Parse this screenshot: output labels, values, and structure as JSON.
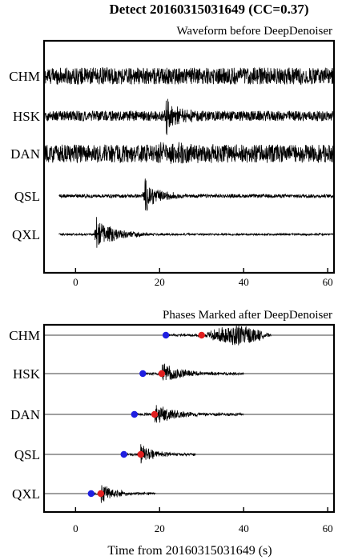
{
  "title": "Detect 20160315031649 (CC=0.37)",
  "colors": {
    "p_pick": "#1f1fe0",
    "s_pick": "#e01f1f",
    "trace": "#000000"
  },
  "chart_data": [
    {
      "type": "line",
      "subtitle": "Waveform before DeepDenoiser",
      "xlim": [
        -7.5,
        61.5
      ],
      "xticks": [
        0,
        20,
        40,
        60
      ],
      "xlabel": "",
      "series": [
        {
          "name": "CHM",
          "start": -7.5,
          "end": 61.5,
          "noise_amp": 0.75,
          "event_time": null,
          "event_amp": 0,
          "event_dur": 0
        },
        {
          "name": "HSK",
          "start": -7.5,
          "end": 61.5,
          "noise_amp": 0.45,
          "event_time": 21.5,
          "event_amp": 1.3,
          "event_dur": 3
        },
        {
          "name": "DAN",
          "start": -7.5,
          "end": 61.5,
          "noise_amp": 0.8,
          "event_time": 20,
          "event_amp": 0.4,
          "event_dur": 10
        },
        {
          "name": "QSL",
          "start": -4,
          "end": 61.5,
          "noise_amp": 0.15,
          "event_time": 16.5,
          "event_amp": 1.1,
          "event_dur": 4
        },
        {
          "name": "QXL",
          "start": -4,
          "end": 61.5,
          "noise_amp": 0.08,
          "event_time": 5,
          "event_amp": 1.2,
          "event_dur": 5
        }
      ]
    },
    {
      "type": "line",
      "subtitle": "Phases Marked after DeepDenoiser",
      "xlim": [
        -7.5,
        61.5
      ],
      "xticks": [
        0,
        20,
        40,
        60
      ],
      "xlabel": "Time from 20160315031649 (s)",
      "series": [
        {
          "name": "CHM",
          "start": -7.5,
          "end": 61.5,
          "signal_end": 46.5,
          "p_pick": 21.5,
          "s_pick": 30,
          "amp": 1.0
        },
        {
          "name": "HSK",
          "start": -7.5,
          "end": 61.5,
          "signal_end": 40,
          "p_pick": 16,
          "s_pick": 20.5,
          "amp": 1.1
        },
        {
          "name": "DAN",
          "start": -7.5,
          "end": 61.5,
          "signal_end": 40,
          "p_pick": 14,
          "s_pick": 18.8,
          "amp": 1.0
        },
        {
          "name": "QSL",
          "start": -7.5,
          "end": 61.5,
          "signal_end": 28.5,
          "p_pick": 11.5,
          "s_pick": 15.5,
          "amp": 1.0
        },
        {
          "name": "QXL",
          "start": -7.5,
          "end": 61.5,
          "signal_end": 19,
          "p_pick": 3.7,
          "s_pick": 6,
          "amp": 1.1
        }
      ]
    }
  ]
}
